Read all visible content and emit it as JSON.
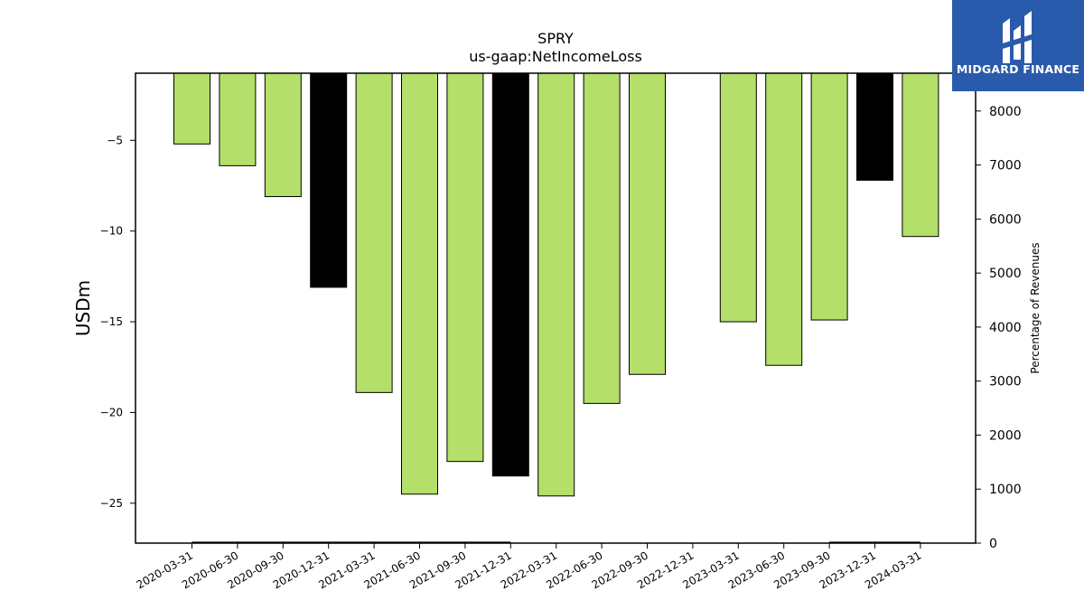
{
  "chart_data": {
    "type": "bar",
    "title": "SPRY",
    "subtitle": "us-gaap:NetIncomeLoss",
    "ylabel": "USDm",
    "y2label": "Percentage of Revenues",
    "ylim": [
      -27.2,
      -1.3
    ],
    "y2lim": [
      0,
      8700
    ],
    "yticks": [
      -5,
      -10,
      -15,
      -20,
      -25
    ],
    "y2ticks": [
      0,
      1000,
      2000,
      3000,
      4000,
      5000,
      6000,
      7000,
      8000
    ],
    "categories": [
      "2020-03-31",
      "2020-06-30",
      "2020-09-30",
      "2020-12-31",
      "2021-03-31",
      "2021-06-30",
      "2021-09-30",
      "2021-12-31",
      "2022-03-31",
      "2022-06-30",
      "2022-09-30",
      "2022-12-31",
      "2023-03-31",
      "2023-06-30",
      "2023-09-30",
      "2023-12-31",
      "2024-03-31"
    ],
    "values": [
      -5.2,
      -6.4,
      -8.1,
      -13.1,
      -18.9,
      -24.5,
      -22.7,
      -23.5,
      -24.6,
      -19.5,
      -17.9,
      null,
      -15.0,
      -17.4,
      -14.9,
      -7.2,
      -10.3
    ],
    "bar_colors": [
      "#b3df6a",
      "#b3df6a",
      "#b3df6a",
      "#000000",
      "#b3df6a",
      "#b3df6a",
      "#b3df6a",
      "#000000",
      "#b3df6a",
      "#b3df6a",
      "#b3df6a",
      "#b3df6a",
      "#b3df6a",
      "#b3df6a",
      "#b3df6a",
      "#000000",
      "#b3df6a"
    ],
    "percentage_of_revenues": [
      10,
      10,
      10,
      10,
      10,
      10,
      10,
      10,
      null,
      null,
      null,
      null,
      null,
      null,
      10,
      10,
      10
    ]
  },
  "logo": {
    "text": "MIDGARD FINANCE",
    "background": "#2a5aab"
  }
}
